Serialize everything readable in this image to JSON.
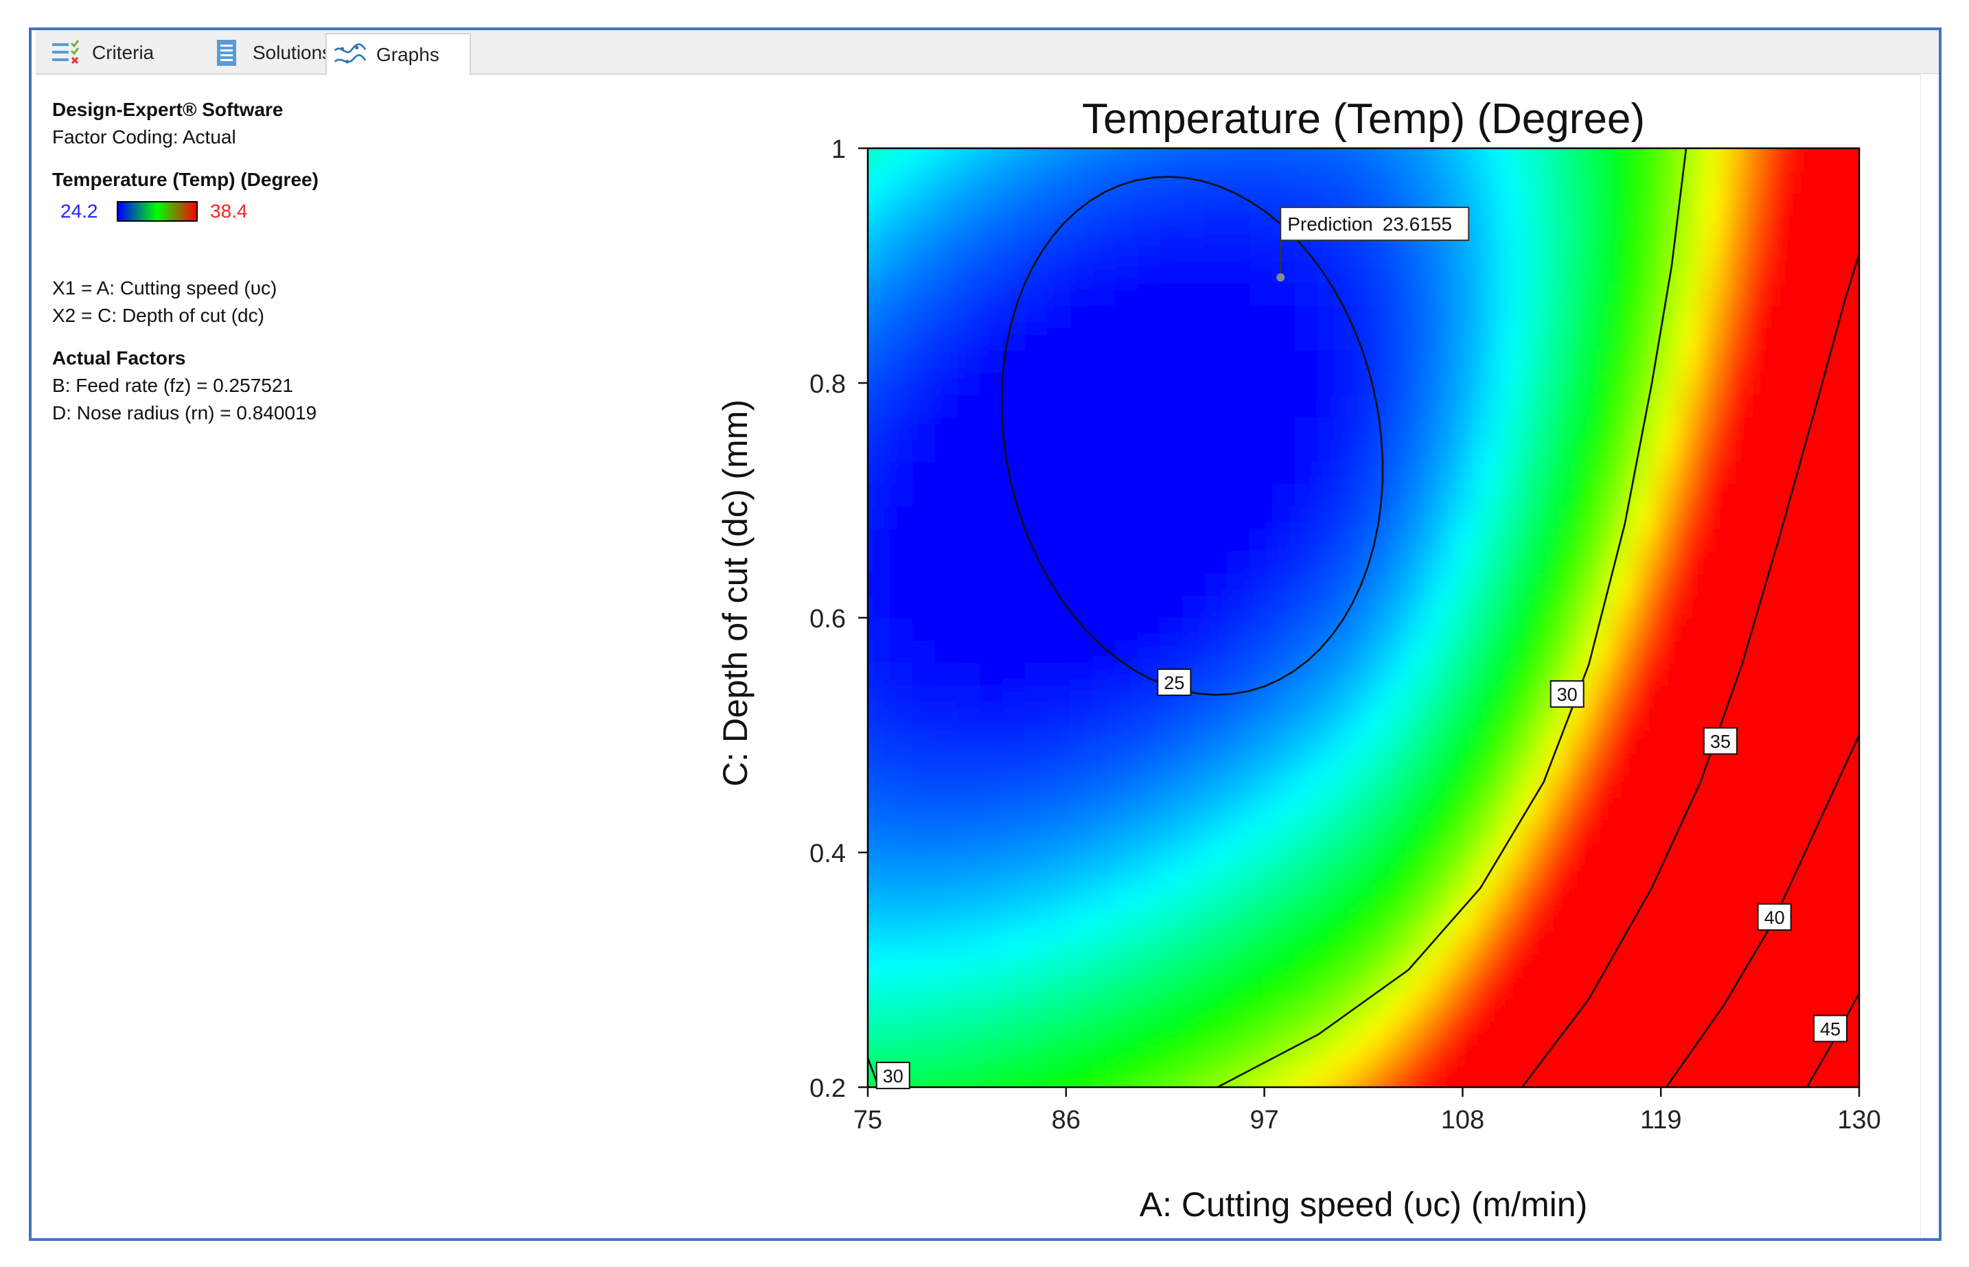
{
  "tabs": [
    {
      "label": "Criteria",
      "icon": "criteria-icon"
    },
    {
      "label": "Solutions",
      "icon": "solutions-icon"
    },
    {
      "label": "Graphs",
      "icon": "graphs-icon",
      "active": true
    }
  ],
  "sidebar": {
    "software": "Design-Expert® Software",
    "coding": "Factor Coding: Actual",
    "response_title": "Temperature (Temp) (Degree)",
    "legend_low": "24.2",
    "legend_high": "38.4",
    "x1": "X1 = A: Cutting speed (υc)",
    "x2": "X2 = C: Depth of cut (dc)",
    "actual_factors_title": "Actual Factors",
    "factor_b": "B: Feed rate (fz) = 0.257521",
    "factor_d": "D: Nose radius (rn) = 0.840019"
  },
  "colors": {
    "frame_border": "#4472c4",
    "legend_low": "#2222ff",
    "legend_high": "#ff2020",
    "color_scale": [
      "#0000ff",
      "#00ffff",
      "#00ff00",
      "#ffff00",
      "#ff0000"
    ]
  },
  "chart_data": {
    "type": "heatmap",
    "subtype": "contour",
    "title": "Temperature (Temp) (Degree)",
    "xlabel": "A: Cutting speed (υc) (m/min)",
    "ylabel": "C: Depth of cut (dc) (mm)",
    "xlim": [
      75,
      130
    ],
    "ylim": [
      0.2,
      1
    ],
    "x_ticks": [
      "75",
      "86",
      "97",
      "108",
      "119",
      "130"
    ],
    "y_ticks": [
      "0.2",
      "0.4",
      "0.6",
      "0.8",
      "1"
    ],
    "color_range": [
      24.2,
      38.4
    ],
    "contour_levels": [
      25,
      30,
      35,
      40,
      45
    ],
    "contour_labels": [
      {
        "label": "25",
        "x": 92,
        "y": 0.545
      },
      {
        "label": "30",
        "x": 113.8,
        "y": 0.535
      },
      {
        "label": "35",
        "x": 122.3,
        "y": 0.495
      },
      {
        "label": "40",
        "x": 125.3,
        "y": 0.345
      },
      {
        "label": "45",
        "x": 128.4,
        "y": 0.25
      },
      {
        "label": "30",
        "x": 76.4,
        "y": 0.21
      }
    ],
    "prediction": {
      "label": "Prediction",
      "value": "23.6155",
      "x": 97.9,
      "y": 0.89
    }
  }
}
